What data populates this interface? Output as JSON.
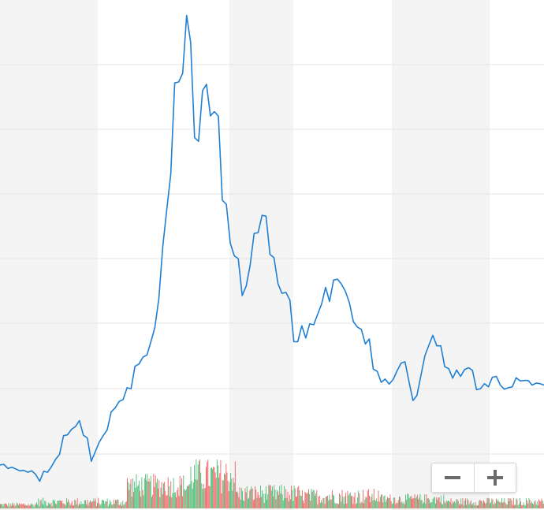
{
  "chart_data": {
    "type": "line",
    "title": "",
    "xlabel": "",
    "ylabel": "",
    "grid": true,
    "legend": "none",
    "ylim": [
      0,
      100
    ],
    "x": [
      0,
      1,
      2,
      3,
      4,
      5,
      6,
      7,
      8,
      9,
      10,
      11,
      12,
      13,
      14,
      15,
      16,
      17,
      18,
      19,
      20,
      21,
      22,
      23,
      24,
      25,
      26,
      27,
      28,
      29,
      30,
      31,
      32,
      33,
      34,
      35,
      36,
      37,
      38,
      39,
      40,
      41,
      42,
      43,
      44,
      45,
      46,
      47,
      48,
      49,
      50,
      51,
      52,
      53,
      54,
      55,
      56,
      57,
      58,
      59,
      60,
      61,
      62,
      63,
      64,
      65,
      66,
      67,
      68,
      69,
      70,
      71,
      72,
      73,
      74,
      75,
      76,
      77,
      78,
      79,
      80,
      81,
      82,
      83,
      84,
      85,
      86,
      87,
      88,
      89,
      90,
      91,
      92,
      93,
      94,
      95,
      96,
      97,
      98,
      99,
      100,
      101,
      102,
      103,
      104,
      105,
      106,
      107,
      108,
      109,
      110,
      111,
      112,
      113,
      114,
      115,
      116,
      117,
      118,
      119,
      120,
      121,
      122,
      123,
      124,
      125,
      126,
      127,
      128,
      129,
      130,
      131,
      132,
      133,
      134,
      135,
      136,
      137
    ],
    "series": [
      {
        "values": [
          0.9,
          1.0,
          0.1,
          0.4,
          0.0,
          -0.4,
          -0.3,
          -0.7,
          -0.4,
          -1.2,
          -2.7,
          -0.5,
          -0.7,
          0.6,
          2.1,
          3.2,
          7.3,
          7.5,
          8.7,
          9.3,
          10.6,
          7.4,
          6.8,
          1.7,
          3.8,
          5.9,
          7.3,
          8.6,
          12.5,
          13.4,
          14.8,
          15.2,
          17.8,
          17.6,
          22.5,
          23.0,
          24.5,
          25.0,
          27.9,
          31.0,
          37.4,
          48.8,
          56.8,
          64.6,
          84.6,
          84.8,
          86.7,
          99.4,
          93.5,
          72.6,
          71.8,
          82.9,
          84.3,
          77.4,
          78.3,
          77.3,
          58.9,
          58.0,
          49.5,
          46.7,
          46.1,
          38.0,
          40.1,
          44.7,
          51.6,
          51.8,
          55.6,
          55.4,
          47.0,
          46.3,
          40.6,
          38.5,
          38.7,
          37.0,
          27.9,
          27.9,
          31.4,
          28.7,
          31.8,
          31.6,
          33.9,
          36.2,
          39.8,
          36.7,
          41.4,
          41.6,
          40.5,
          38.9,
          36.4,
          32.3,
          31.1,
          30.6,
          27.4,
          28.5,
          21.9,
          21.4,
          19.0,
          19.7,
          18.6,
          19.6,
          21.5,
          23.2,
          23.5,
          19.1,
          15.0,
          16.1,
          20.5,
          24.8,
          27.1,
          29.3,
          27.0,
          27.0,
          22.4,
          22.0,
          19.9,
          21.7,
          20.3,
          21.8,
          22.2,
          21.6,
          17.4,
          17.6,
          18.7,
          18.0,
          20.1,
          20.3,
          18.4,
          17.5,
          17.8,
          18.0,
          20.0,
          19.3,
          19.4,
          19.4,
          18.4,
          18.8,
          18.7,
          18.4
        ]
      }
    ],
    "volume": [
      {
        "count": 40,
        "low": 0.2,
        "high": 0.9
      },
      {
        "count": 100,
        "low": 0.3,
        "high": 1.6
      },
      {
        "count": 70,
        "low": 1.6,
        "high": 5.2
      },
      {
        "count": 50,
        "low": 2.2,
        "high": 7.5
      },
      {
        "count": 70,
        "low": 0.8,
        "high": 3.6
      },
      {
        "count": 90,
        "low": 0.6,
        "high": 3.0
      },
      {
        "count": 70,
        "low": 0.6,
        "high": 2.2
      },
      {
        "count": 110,
        "low": 0.4,
        "high": 1.6
      }
    ],
    "colors": {
      "line": "#1f7fd4",
      "band": "#f4f4f4",
      "grid": "#e6e6e6",
      "volume_up": "#4ec07a",
      "volume_down": "#f06464"
    }
  },
  "zoom_controls": {
    "zoom_out_icon": "minus-icon",
    "zoom_in_icon": "plus-icon"
  }
}
